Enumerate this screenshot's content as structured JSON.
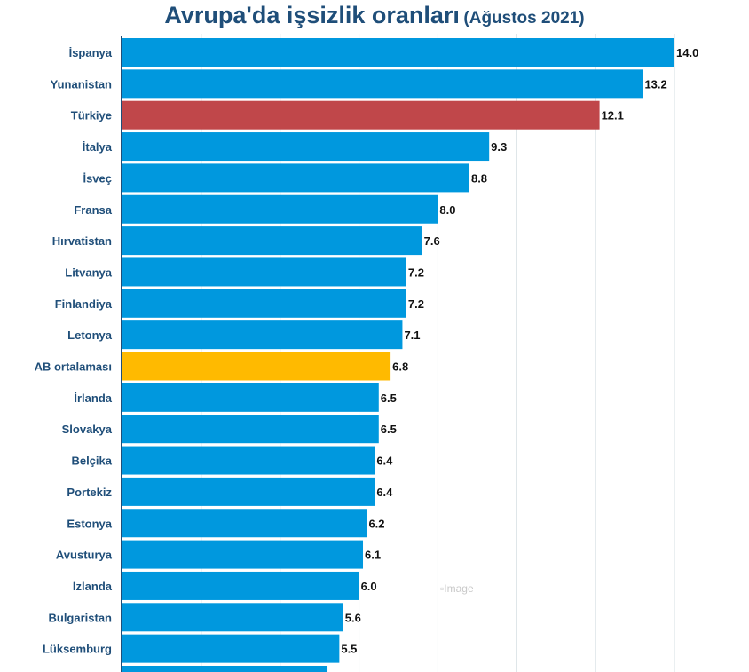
{
  "chart_data": {
    "type": "bar",
    "orientation": "horizontal",
    "title": "Avrupa'da işsizlik oranları",
    "subtitle": "(Ağustos 2021)",
    "categories": [
      "İspanya",
      "Yunanistan",
      "Türkiye",
      "İtalya",
      "İsveç",
      "Fransa",
      "Hırvatistan",
      "Litvanya",
      "Finlandiya",
      "Letonya",
      "AB ortalaması",
      "İrlanda",
      "Slovakya",
      "Belçika",
      "Portekiz",
      "Estonya",
      "Avusturya",
      "İzlanda",
      "Bulgaristan",
      "Lüksemburg"
    ],
    "values": [
      14.0,
      13.2,
      12.1,
      9.3,
      8.8,
      8.0,
      7.6,
      7.2,
      7.2,
      7.1,
      6.8,
      6.5,
      6.5,
      6.4,
      6.4,
      6.2,
      6.1,
      6.0,
      5.6,
      5.5
    ],
    "value_labels": [
      "14.0",
      "13.2",
      "12.1",
      "9.3",
      "8.8",
      "8.0",
      "7.6",
      "7.2",
      "7.2",
      "7.1",
      "6.8",
      "6.5",
      "6.5",
      "6.4",
      "6.4",
      "6.2",
      "6.1",
      "6.0",
      "5.6",
      "5.5"
    ],
    "highlight": {
      "Türkiye": "#c0474a",
      "AB ortalaması": "#ffba00"
    },
    "bar_color": "#0098de",
    "xlim": [
      0,
      14
    ],
    "grid": true,
    "truncated_next_value": 5.2
  },
  "watermark": "Image"
}
